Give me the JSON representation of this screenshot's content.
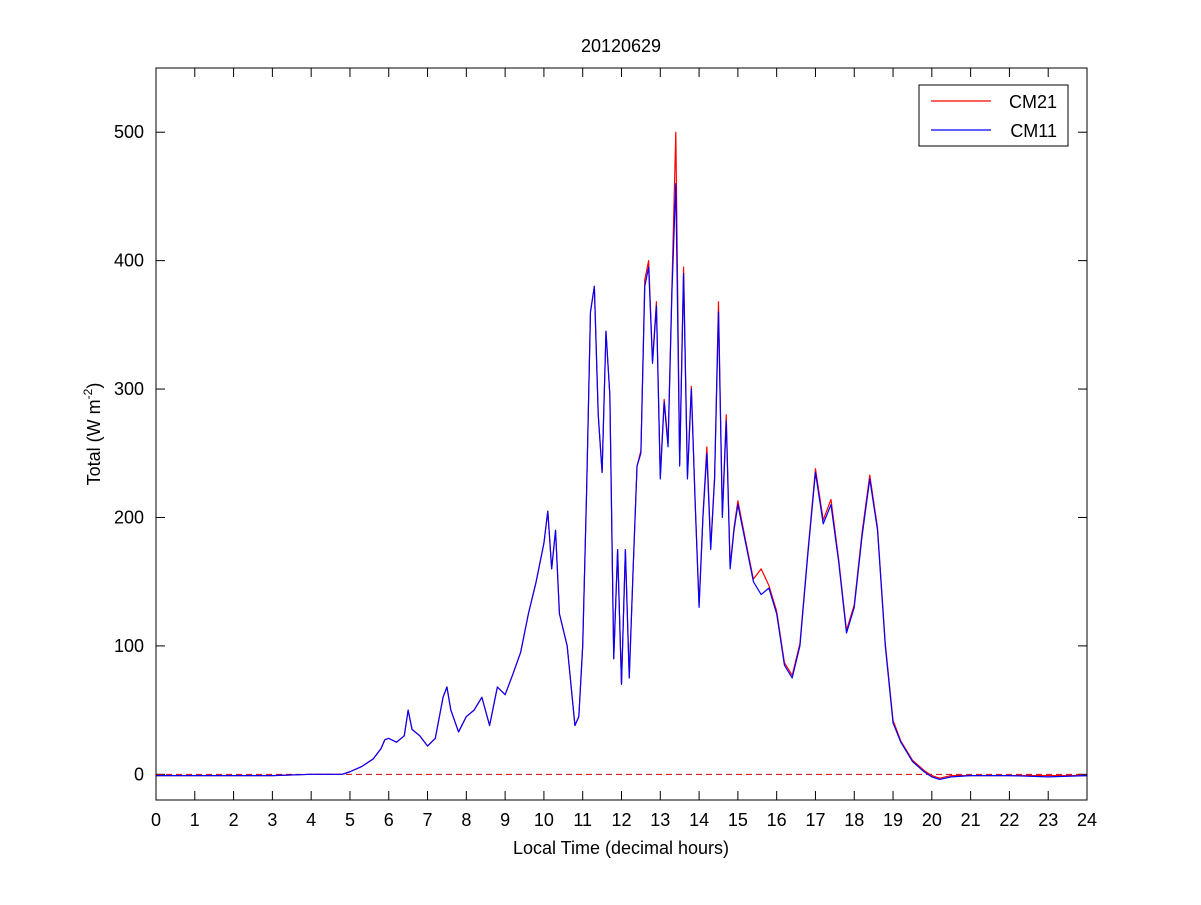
{
  "chart_data": {
    "type": "line",
    "title": "20120629",
    "xlabel": "Local Time (decimal hours)",
    "ylabel": [
      "Total (W m",
      "-2",
      ")"
    ],
    "x": [
      0,
      1,
      2,
      3,
      4,
      4.5,
      4.8,
      5,
      5.3,
      5.6,
      5.8,
      5.9,
      6.0,
      6.2,
      6.4,
      6.5,
      6.6,
      6.8,
      7.0,
      7.2,
      7.4,
      7.5,
      7.6,
      7.8,
      8.0,
      8.2,
      8.4,
      8.6,
      8.8,
      9.0,
      9.2,
      9.4,
      9.6,
      9.8,
      10.0,
      10.1,
      10.2,
      10.3,
      10.4,
      10.6,
      10.8,
      10.9,
      11.0,
      11.1,
      11.2,
      11.3,
      11.4,
      11.5,
      11.6,
      11.7,
      11.8,
      11.9,
      12.0,
      12.1,
      12.2,
      12.3,
      12.4,
      12.5,
      12.6,
      12.7,
      12.8,
      12.9,
      13.0,
      13.1,
      13.2,
      13.3,
      13.4,
      13.5,
      13.6,
      13.7,
      13.8,
      13.9,
      14.0,
      14.1,
      14.2,
      14.3,
      14.4,
      14.5,
      14.6,
      14.7,
      14.8,
      14.9,
      15.0,
      15.2,
      15.4,
      15.6,
      15.8,
      16.0,
      16.2,
      16.4,
      16.6,
      16.8,
      17.0,
      17.2,
      17.4,
      17.6,
      17.8,
      18.0,
      18.2,
      18.4,
      18.6,
      18.8,
      19.0,
      19.2,
      19.5,
      19.8,
      20.0,
      20.2,
      20.5,
      21,
      22,
      23,
      24
    ],
    "series": [
      {
        "name": "CM21",
        "color": "#ff0000",
        "values": [
          -1,
          -1,
          -1,
          -1,
          0,
          0,
          0,
          2,
          6,
          12,
          20,
          27,
          28,
          25,
          30,
          50,
          35,
          30,
          22,
          28,
          60,
          68,
          50,
          33,
          45,
          50,
          60,
          38,
          68,
          62,
          78,
          95,
          125,
          150,
          180,
          205,
          160,
          190,
          125,
          100,
          38,
          45,
          100,
          220,
          360,
          380,
          280,
          235,
          345,
          295,
          90,
          175,
          70,
          175,
          75,
          160,
          240,
          252,
          385,
          400,
          322,
          368,
          232,
          292,
          258,
          380,
          500,
          242,
          395,
          232,
          302,
          212,
          132,
          202,
          255,
          177,
          232,
          368,
          202,
          280,
          162,
          192,
          213,
          182,
          152,
          160,
          147,
          127,
          87,
          77,
          102,
          172,
          238,
          198,
          214,
          167,
          112,
          132,
          188,
          233,
          192,
          102,
          42,
          26,
          11,
          3,
          -1,
          -3,
          -1,
          -1,
          -1,
          -1,
          -1
        ]
      },
      {
        "name": "CM11",
        "color": "#0000ff",
        "values": [
          -1,
          -1,
          -1,
          -1,
          0,
          0,
          0,
          2,
          6,
          12,
          20,
          27,
          28,
          25,
          30,
          50,
          35,
          30,
          22,
          28,
          60,
          68,
          50,
          33,
          45,
          50,
          60,
          38,
          68,
          62,
          78,
          95,
          125,
          150,
          180,
          205,
          160,
          190,
          125,
          100,
          38,
          45,
          100,
          220,
          360,
          380,
          280,
          235,
          345,
          295,
          90,
          175,
          70,
          175,
          75,
          160,
          240,
          250,
          380,
          395,
          320,
          365,
          230,
          290,
          255,
          375,
          460,
          240,
          390,
          230,
          300,
          210,
          130,
          200,
          250,
          175,
          230,
          360,
          200,
          275,
          160,
          190,
          210,
          180,
          150,
          140,
          145,
          125,
          85,
          75,
          100,
          170,
          235,
          195,
          210,
          165,
          110,
          130,
          185,
          230,
          190,
          100,
          40,
          25,
          10,
          2,
          -2,
          -4,
          -2,
          -1,
          -1,
          -2,
          -1
        ]
      }
    ],
    "hline": {
      "value": 0,
      "color": "#cc0000"
    },
    "xlim": [
      0,
      24
    ],
    "xticks": [
      0,
      1,
      2,
      3,
      4,
      5,
      6,
      7,
      8,
      9,
      10,
      11,
      12,
      13,
      14,
      15,
      16,
      17,
      18,
      19,
      20,
      21,
      22,
      23,
      24
    ],
    "ylim": [
      -20,
      550
    ],
    "yticks": [
      0,
      100,
      200,
      300,
      400,
      500
    ],
    "grid": false,
    "legend": "upper-right"
  }
}
